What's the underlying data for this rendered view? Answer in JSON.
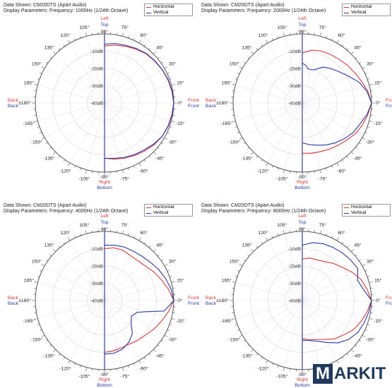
{
  "chart_data": [
    {
      "type": "polar",
      "data_shown": "Data Shown:   CM20DTS (Apart Audio)",
      "display_parameters": "Display Parameters:   Frequency: 1000Hz (1/24th Octave)",
      "radial_labels": [
        "-10dB",
        "-20dB",
        "-30dB",
        "-40dB"
      ],
      "radial_range": [
        -40,
        0
      ],
      "angle_labels": [
        "90°",
        "75°",
        "60°",
        "45°",
        "30°",
        "15°",
        "0°",
        "-15°",
        "-30°",
        "-45°",
        "-60°",
        "-75°",
        "-90°",
        "-105°",
        "-120°",
        "-135°",
        "-150°",
        "-165°",
        "±180°",
        "165°",
        "150°",
        "135°",
        "120°",
        "105°"
      ],
      "direction_labels": {
        "top_1": "Left",
        "top_2": "Top",
        "bottom_1": "Right",
        "bottom_2": "Bottom",
        "left_1": "Back",
        "left_2": "Back",
        "right_1": "Front",
        "right_2": "Front"
      },
      "series": [
        {
          "name": "Horizontal",
          "color": "#d9383a",
          "points": [
            [
              90,
              -7
            ],
            [
              80,
              -6
            ],
            [
              70,
              -5
            ],
            [
              60,
              -4
            ],
            [
              50,
              -2.8
            ],
            [
              40,
              -2.2
            ],
            [
              30,
              -1.5
            ],
            [
              20,
              -1
            ],
            [
              10,
              -0.5
            ],
            [
              0,
              0
            ],
            [
              -10,
              -0.5
            ],
            [
              -20,
              -1
            ],
            [
              -30,
              -1.5
            ],
            [
              -40,
              -2.5
            ],
            [
              -50,
              -3.8
            ],
            [
              -60,
              -5
            ],
            [
              -70,
              -6
            ],
            [
              -80,
              -7
            ],
            [
              -90,
              -8
            ]
          ]
        },
        {
          "name": "Vertical",
          "color": "#2b3aa5",
          "points": [
            [
              90,
              -6
            ],
            [
              80,
              -5
            ],
            [
              70,
              -4.5
            ],
            [
              60,
              -3.5
            ],
            [
              50,
              -2.5
            ],
            [
              40,
              -2
            ],
            [
              30,
              -1.4
            ],
            [
              20,
              -0.8
            ],
            [
              10,
              -0.3
            ],
            [
              0,
              0
            ],
            [
              -10,
              -0.3
            ],
            [
              -20,
              -0.8
            ],
            [
              -30,
              -1.5
            ],
            [
              -40,
              -3
            ],
            [
              -50,
              -4.5
            ],
            [
              -60,
              -5.5
            ],
            [
              -70,
              -6.5
            ],
            [
              -80,
              -7.5
            ],
            [
              -90,
              -8
            ]
          ]
        }
      ]
    },
    {
      "type": "polar",
      "data_shown": "Data Shown:   CM20DTS (Apart Audio)",
      "display_parameters": "Display Parameters:   Frequency: 2000Hz (1/24th Octave)",
      "radial_labels": [
        "-10dB",
        "-20dB",
        "-30dB",
        "-40dB"
      ],
      "radial_range": [
        -40,
        0
      ],
      "angle_labels": [
        "90°",
        "75°",
        "60°",
        "45°",
        "30°",
        "15°",
        "0°",
        "-15°",
        "-30°",
        "-45°",
        "-60°",
        "-75°",
        "-90°",
        "-105°",
        "-120°",
        "-135°",
        "-150°",
        "-165°",
        "±180°",
        "165°",
        "150°",
        "135°",
        "120°",
        "105°"
      ],
      "direction_labels": {
        "top_1": "Left",
        "top_2": "Top",
        "bottom_1": "Right",
        "bottom_2": "Bottom",
        "left_1": "Back",
        "left_2": "Back",
        "right_1": "Front",
        "right_2": "Front"
      },
      "series": [
        {
          "name": "Horizontal",
          "color": "#d9383a",
          "points": [
            [
              90,
              -11
            ],
            [
              80,
              -9
            ],
            [
              70,
              -8
            ],
            [
              60,
              -7.5
            ],
            [
              50,
              -7
            ],
            [
              40,
              -6
            ],
            [
              30,
              -5
            ],
            [
              20,
              -3.5
            ],
            [
              10,
              -1.5
            ],
            [
              0,
              0
            ],
            [
              -10,
              -1.5
            ],
            [
              -20,
              -3
            ],
            [
              -30,
              -4.5
            ],
            [
              -40,
              -6.5
            ],
            [
              -50,
              -8
            ],
            [
              -60,
              -9
            ],
            [
              -70,
              -10
            ],
            [
              -80,
              -10.5
            ],
            [
              -90,
              -11
            ]
          ]
        },
        {
          "name": "Vertical",
          "color": "#2b3aa5",
          "points": [
            [
              90,
              -17
            ],
            [
              85,
              -18
            ],
            [
              80,
              -20
            ],
            [
              75,
              -20
            ],
            [
              70,
              -19.5
            ],
            [
              60,
              -16
            ],
            [
              50,
              -14
            ],
            [
              40,
              -12
            ],
            [
              30,
              -9
            ],
            [
              20,
              -5
            ],
            [
              10,
              -2
            ],
            [
              0,
              0
            ],
            [
              -10,
              -2
            ],
            [
              -20,
              -4.5
            ],
            [
              -30,
              -6
            ],
            [
              -40,
              -8
            ],
            [
              -50,
              -10
            ],
            [
              -60,
              -12
            ],
            [
              -70,
              -14
            ],
            [
              -80,
              -15.5
            ],
            [
              -90,
              -17
            ]
          ]
        }
      ]
    },
    {
      "type": "polar",
      "data_shown": "Data Shown:   CM20DTS (Apart Audio)",
      "display_parameters": "Display Parameters:   Frequency: 4000Hz (1/24th Octave)",
      "radial_labels": [
        "-10dB",
        "-20dB",
        "-30dB",
        "-40dB"
      ],
      "radial_range": [
        -40,
        0
      ],
      "angle_labels": [
        "90°",
        "75°",
        "60°",
        "45°",
        "30°",
        "15°",
        "0°",
        "-15°",
        "-30°",
        "-45°",
        "-60°",
        "-75°",
        "-90°",
        "-105°",
        "-120°",
        "-135°",
        "-150°",
        "-165°",
        "±180°",
        "165°",
        "150°",
        "135°",
        "120°",
        "105°"
      ],
      "direction_labels": {
        "top_1": "Left",
        "top_2": "Top",
        "bottom_1": "Right",
        "bottom_2": "Bottom",
        "left_1": "Back",
        "left_2": "Back",
        "right_1": "Front",
        "right_2": "Front"
      },
      "series": [
        {
          "name": "Horizontal",
          "color": "#d9383a",
          "points": [
            [
              90,
              -10
            ],
            [
              80,
              -9
            ],
            [
              70,
              -9
            ],
            [
              60,
              -10
            ],
            [
              50,
              -10
            ],
            [
              40,
              -9
            ],
            [
              30,
              -7
            ],
            [
              20,
              -5
            ],
            [
              10,
              -2.5
            ],
            [
              0,
              0
            ],
            [
              -10,
              -2.5
            ],
            [
              -20,
              -5
            ],
            [
              -30,
              -7
            ],
            [
              -40,
              -9
            ],
            [
              -50,
              -10
            ],
            [
              -60,
              -11
            ],
            [
              -70,
              -11
            ],
            [
              -80,
              -10.5
            ],
            [
              -90,
              -10
            ]
          ]
        },
        {
          "name": "Vertical",
          "color": "#2b3aa5",
          "points": [
            [
              90,
              -8
            ],
            [
              80,
              -7.5
            ],
            [
              70,
              -7
            ],
            [
              60,
              -7
            ],
            [
              50,
              -6.5
            ],
            [
              40,
              -5.5
            ],
            [
              30,
              -4
            ],
            [
              20,
              -2.5
            ],
            [
              10,
              -1
            ],
            [
              0,
              0
            ],
            [
              -10,
              -5
            ],
            [
              -15,
              -15
            ],
            [
              -20,
              -20
            ],
            [
              -30,
              -22
            ],
            [
              -40,
              -20
            ],
            [
              -50,
              -15
            ],
            [
              -60,
              -12
            ],
            [
              -70,
              -10
            ],
            [
              -80,
              -9
            ],
            [
              -90,
              -9
            ]
          ]
        }
      ]
    },
    {
      "type": "polar",
      "data_shown": "Data Shown:   CM20DTS (Apart Audio)",
      "display_parameters": "Display Parameters:   Frequency: 8000Hz (1/24th Octave)",
      "radial_labels": [
        "-10dB",
        "-20dB",
        "-30dB",
        "-40dB"
      ],
      "radial_range": [
        -40,
        0
      ],
      "angle_labels": [
        "90°",
        "75°",
        "60°",
        "45°",
        "30°",
        "15°",
        "0°",
        "-15°",
        "-30°",
        "-45°",
        "-60°",
        "-75°",
        "-90°",
        "-105°",
        "-120°",
        "-135°",
        "-150°",
        "-165°",
        "±180°",
        "165°",
        "150°",
        "135°",
        "120°",
        "105°"
      ],
      "direction_labels": {
        "top_1": "Left",
        "top_2": "Top",
        "bottom_1": "Right",
        "bottom_2": "Bottom",
        "left_1": "Back",
        "left_2": "Back",
        "right_1": "Front",
        "right_2": "Front"
      },
      "series": [
        {
          "name": "Horizontal",
          "color": "#d9383a",
          "points": [
            [
              90,
              -16
            ],
            [
              80,
              -15
            ],
            [
              70,
              -15
            ],
            [
              60,
              -14
            ],
            [
              50,
              -12
            ],
            [
              40,
              -10
            ],
            [
              30,
              -7
            ],
            [
              20,
              -4
            ],
            [
              10,
              -2
            ],
            [
              0,
              0
            ],
            [
              -10,
              -2
            ],
            [
              -20,
              -4
            ],
            [
              -30,
              -6
            ],
            [
              -40,
              -9
            ],
            [
              -50,
              -11
            ],
            [
              -60,
              -14
            ],
            [
              -70,
              -16
            ],
            [
              -80,
              -17
            ],
            [
              -90,
              -18
            ]
          ]
        },
        {
          "name": "Vertical",
          "color": "#2b3aa5",
          "points": [
            [
              90,
              -8
            ],
            [
              80,
              -6
            ],
            [
              70,
              -5
            ],
            [
              60,
              -4.5
            ],
            [
              50,
              -4
            ],
            [
              40,
              -3.5
            ],
            [
              30,
              -3
            ],
            [
              20,
              -6
            ],
            [
              10,
              -4
            ],
            [
              0,
              0
            ],
            [
              -10,
              -1
            ],
            [
              -20,
              -2
            ],
            [
              -30,
              -3
            ],
            [
              -40,
              -5
            ],
            [
              -50,
              -8
            ],
            [
              -60,
              -12
            ],
            [
              -70,
              -15
            ],
            [
              -80,
              -16.5
            ],
            [
              -90,
              -17
            ]
          ]
        }
      ]
    }
  ],
  "watermark": {
    "box_letter": "M",
    "text": "ARKIT",
    "dot": "."
  }
}
